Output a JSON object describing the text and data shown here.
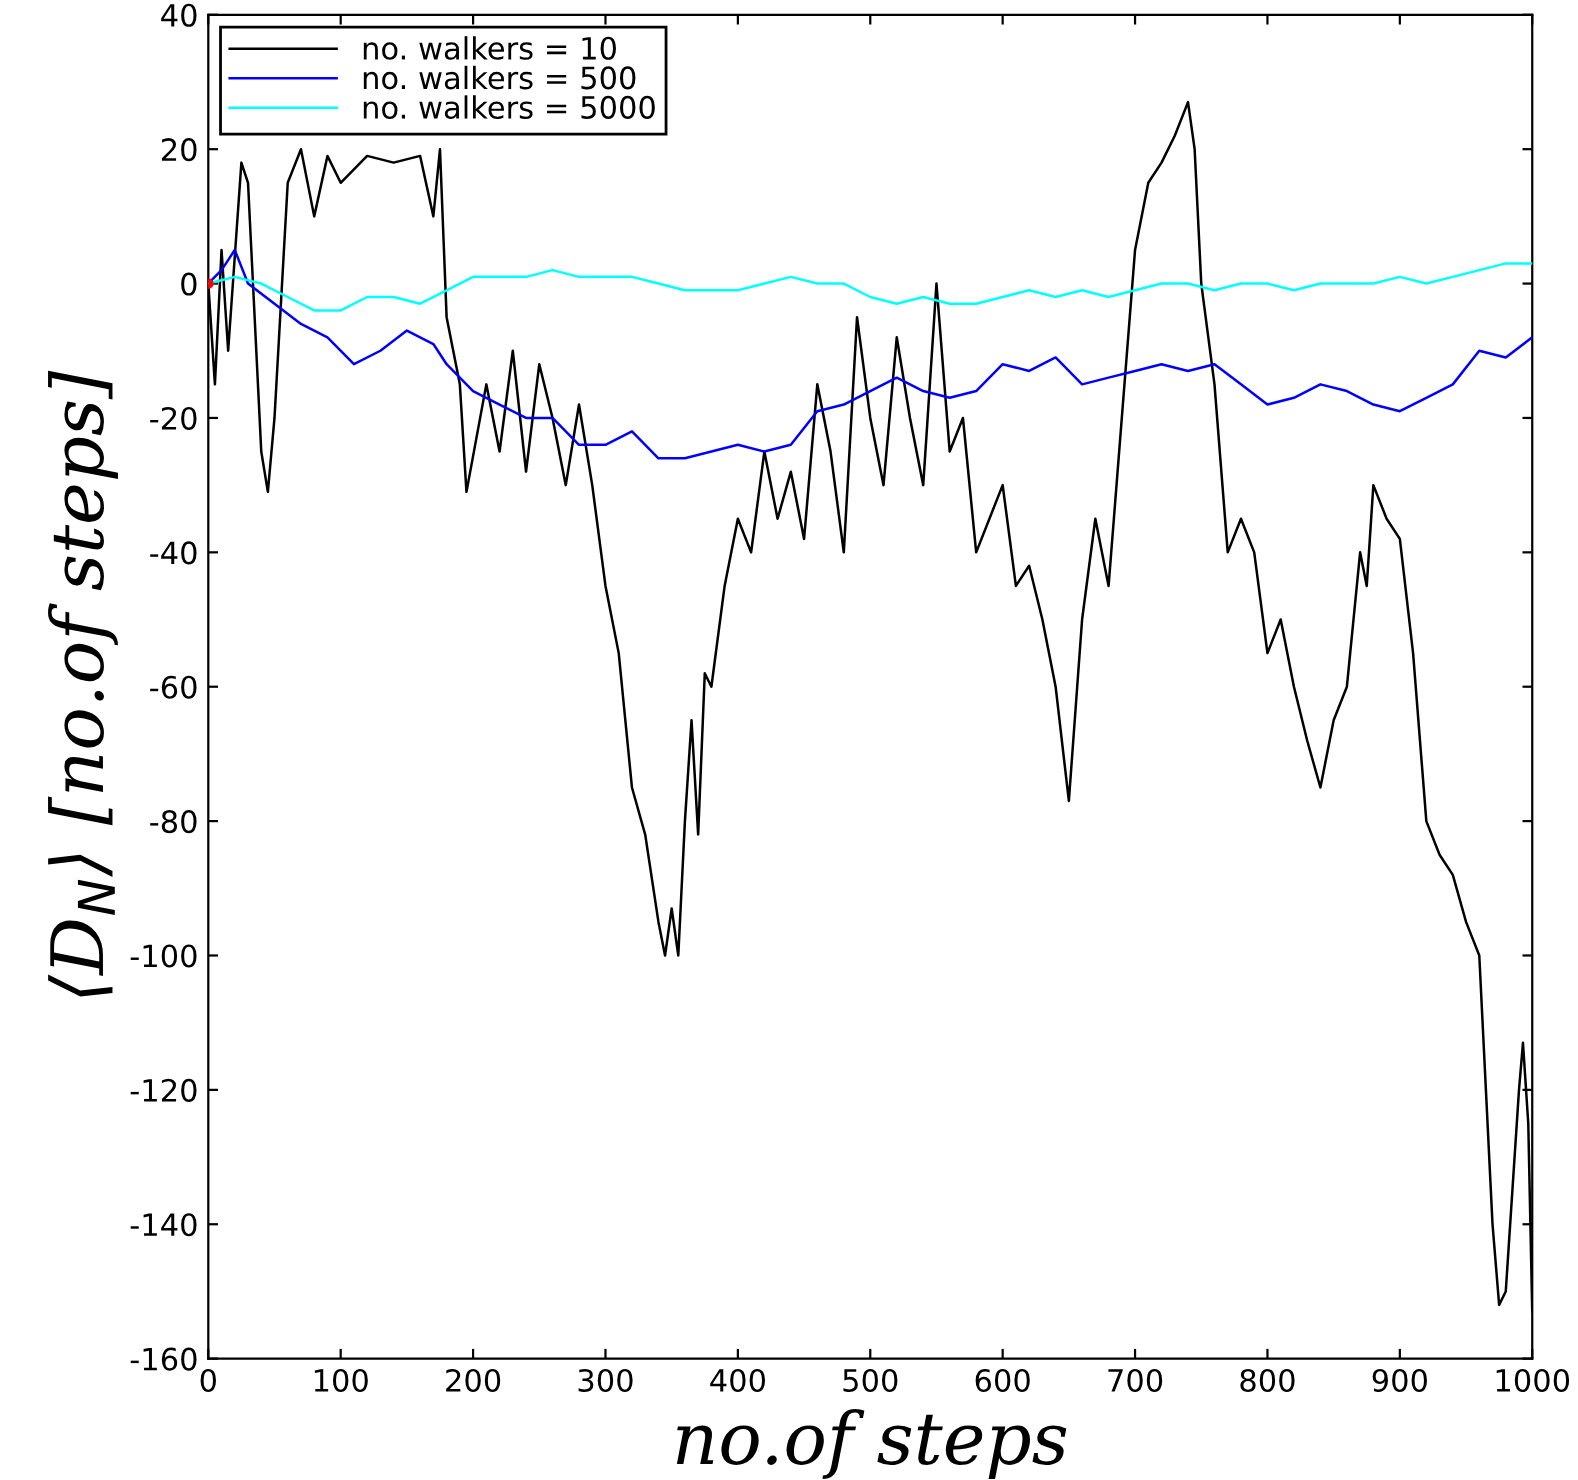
{
  "chart_data": {
    "type": "line",
    "xlabel": "no.of steps",
    "ylabel": "⟨D$_{N}$⟩ [no.of steps]",
    "xlim": [
      0,
      1000
    ],
    "ylim": [
      -160,
      40
    ],
    "xticks": [
      0,
      100,
      200,
      300,
      400,
      500,
      600,
      700,
      800,
      900,
      1000
    ],
    "yticks": [
      -160,
      -140,
      -120,
      -100,
      -80,
      -60,
      -40,
      -20,
      0,
      20,
      40
    ],
    "grid": false,
    "legend": "top left",
    "line_style": "solid",
    "marker": "none",
    "series": [
      {
        "name": "no. walkers = 10",
        "color": "#000000",
        "x": [
          0,
          5,
          10,
          15,
          25,
          30,
          40,
          45,
          50,
          60,
          70,
          80,
          90,
          100,
          120,
          140,
          160,
          170,
          175,
          180,
          190,
          195,
          210,
          220,
          230,
          240,
          250,
          260,
          270,
          280,
          290,
          300,
          310,
          320,
          330,
          340,
          345,
          350,
          355,
          360,
          365,
          370,
          375,
          380,
          390,
          400,
          410,
          420,
          430,
          440,
          450,
          460,
          470,
          480,
          490,
          500,
          510,
          520,
          530,
          540,
          550,
          560,
          570,
          580,
          590,
          600,
          610,
          620,
          630,
          640,
          650,
          660,
          670,
          680,
          690,
          700,
          710,
          720,
          730,
          740,
          745,
          750,
          760,
          770,
          780,
          790,
          800,
          810,
          820,
          830,
          840,
          850,
          860,
          870,
          875,
          880,
          890,
          900,
          910,
          920,
          930,
          940,
          950,
          960,
          965,
          970,
          975,
          980,
          985,
          990,
          993,
          997,
          1000
        ],
        "values": [
          0,
          -15,
          5,
          -10,
          18,
          15,
          -25,
          -31,
          -20,
          15,
          20,
          10,
          19,
          15,
          19,
          18,
          19,
          10,
          20,
          -5,
          -15,
          -31,
          -15,
          -25,
          -10,
          -28,
          -12,
          -20,
          -30,
          -18,
          -30,
          -45,
          -55,
          -75,
          -82,
          -95,
          -100,
          -93,
          -100,
          -80,
          -65,
          -82,
          -58,
          -60,
          -45,
          -35,
          -40,
          -25,
          -35,
          -28,
          -38,
          -15,
          -25,
          -40,
          -5,
          -20,
          -30,
          -8,
          -20,
          -30,
          0,
          -25,
          -20,
          -40,
          -35,
          -30,
          -45,
          -42,
          -50,
          -60,
          -77,
          -50,
          -35,
          -45,
          -20,
          5,
          15,
          18,
          22,
          27,
          20,
          0,
          -15,
          -40,
          -35,
          -40,
          -55,
          -50,
          -60,
          -68,
          -75,
          -65,
          -60,
          -40,
          -45,
          -30,
          -35,
          -38,
          -55,
          -80,
          -85,
          -88,
          -95,
          -100,
          -120,
          -140,
          -152,
          -150,
          -135,
          -120,
          -113,
          -125,
          -153
        ]
      },
      {
        "name": "no. walkers = 500",
        "color": "#0000ff",
        "x": [
          0,
          10,
          20,
          30,
          50,
          70,
          90,
          110,
          130,
          150,
          170,
          180,
          200,
          220,
          240,
          260,
          280,
          300,
          320,
          340,
          360,
          380,
          400,
          420,
          440,
          460,
          480,
          500,
          520,
          540,
          560,
          580,
          600,
          620,
          640,
          660,
          680,
          700,
          720,
          740,
          760,
          780,
          800,
          820,
          840,
          860,
          880,
          900,
          920,
          940,
          960,
          980,
          1000
        ],
        "values": [
          0,
          2,
          5,
          0,
          -3,
          -6,
          -8,
          -12,
          -10,
          -7,
          -9,
          -12,
          -16,
          -18,
          -20,
          -20,
          -24,
          -24,
          -22,
          -26,
          -26,
          -25,
          -24,
          -25,
          -24,
          -19,
          -18,
          -16,
          -14,
          -16,
          -17,
          -16,
          -12,
          -13,
          -11,
          -15,
          -14,
          -13,
          -12,
          -13,
          -12,
          -15,
          -18,
          -17,
          -15,
          -16,
          -18,
          -19,
          -17,
          -15,
          -10,
          -11,
          -8
        ]
      },
      {
        "name": "no. walkers = 5000",
        "color": "#00ffff",
        "x": [
          0,
          20,
          40,
          60,
          80,
          100,
          120,
          140,
          160,
          180,
          200,
          220,
          240,
          260,
          280,
          300,
          320,
          340,
          360,
          380,
          400,
          420,
          440,
          460,
          480,
          500,
          520,
          540,
          560,
          580,
          600,
          620,
          640,
          660,
          680,
          700,
          720,
          740,
          760,
          780,
          800,
          820,
          840,
          860,
          880,
          900,
          920,
          940,
          960,
          980,
          1000
        ],
        "values": [
          0,
          1,
          0,
          -2,
          -4,
          -4,
          -2,
          -2,
          -3,
          -1,
          1,
          1,
          1,
          2,
          1,
          1,
          1,
          0,
          -1,
          -1,
          -1,
          0,
          1,
          0,
          0,
          -2,
          -3,
          -2,
          -3,
          -3,
          -2,
          -1,
          -2,
          -1,
          -2,
          -1,
          0,
          0,
          -1,
          0,
          0,
          -1,
          0,
          0,
          0,
          1,
          0,
          1,
          2,
          3,
          3
        ]
      },
      {
        "type": "scatter",
        "marker": "circle",
        "color": "#ff0000",
        "x": [
          0
        ],
        "values": [
          0
        ]
      }
    ]
  }
}
